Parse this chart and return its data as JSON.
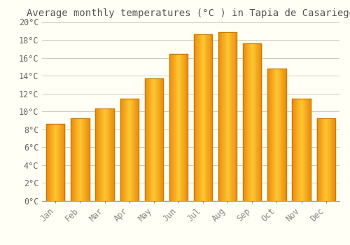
{
  "title": "Average monthly temperatures (°C ) in Tapia de Casariego",
  "months": [
    "Jan",
    "Feb",
    "Mar",
    "Apr",
    "May",
    "Jun",
    "Jul",
    "Aug",
    "Sep",
    "Oct",
    "Nov",
    "Dec"
  ],
  "temperatures": [
    8.6,
    9.2,
    10.3,
    11.4,
    13.7,
    16.4,
    18.6,
    18.9,
    17.6,
    14.8,
    11.4,
    9.2
  ],
  "bar_color_center": "#FFB700",
  "bar_color_edge": "#F08000",
  "ylim": [
    0,
    20
  ],
  "yticks": [
    0,
    2,
    4,
    6,
    8,
    10,
    12,
    14,
    16,
    18,
    20
  ],
  "background_color": "#FFFFF5",
  "grid_color": "#CCCCBB",
  "title_fontsize": 10,
  "tick_fontsize": 8.5,
  "tick_color": "#888888",
  "axis_label_color": "#666666",
  "font_family": "monospace",
  "bar_width": 0.75
}
